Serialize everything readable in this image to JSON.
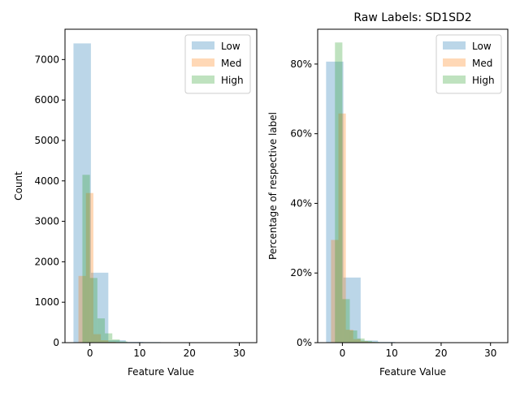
{
  "chart_data": [
    {
      "type": "bar",
      "title": "",
      "xlabel": "Feature Value",
      "ylabel": "Count",
      "xlim": [
        -5,
        33.5
      ],
      "ylim": [
        0,
        7750
      ],
      "xticks": [
        0,
        10,
        20,
        30
      ],
      "xtick_labels": [
        "0",
        "10",
        "20",
        "30"
      ],
      "yticks": [
        0,
        1000,
        2000,
        3000,
        4000,
        5000,
        6000,
        7000
      ],
      "ytick_labels": [
        "0",
        "1000",
        "2000",
        "3000",
        "4000",
        "5000",
        "6000",
        "7000"
      ],
      "legend": "top-right",
      "series": [
        {
          "name": "Low",
          "color": "#1f77b4",
          "bin_edges": [
            -3.3,
            0.2,
            3.7,
            7.2,
            10.7,
            14.2
          ],
          "values": [
            7400,
            1730,
            60,
            20,
            15
          ]
        },
        {
          "name": "Med",
          "color": "#ff7f0e",
          "bin_edges": [
            -2.3,
            -0.8,
            0.7,
            2.2,
            3.7,
            5.2,
            6.7,
            8.2,
            9.7,
            11.2,
            12.7
          ],
          "values": [
            1650,
            3700,
            210,
            60,
            20,
            10,
            5,
            3,
            2,
            1
          ]
        },
        {
          "name": "High",
          "color": "#2ca02c",
          "bin_edges": [
            -1.5,
            0.0,
            1.5,
            3.0,
            4.5,
            6.0,
            7.5,
            9.0,
            10.5,
            12.0,
            13.5
          ],
          "values": [
            4150,
            1600,
            600,
            230,
            80,
            30,
            10,
            5,
            2,
            1
          ]
        }
      ]
    },
    {
      "type": "bar",
      "title": "Raw Labels: SD1SD2",
      "xlabel": "Feature Value",
      "ylabel": "Percentage of respective label",
      "xlim": [
        -5,
        33.5
      ],
      "ylim": [
        0,
        0.9
      ],
      "xticks": [
        0,
        10,
        20,
        30
      ],
      "xtick_labels": [
        "0",
        "10",
        "20",
        "30"
      ],
      "yticks": [
        0,
        0.2,
        0.4,
        0.6,
        0.8
      ],
      "ytick_labels": [
        "0%",
        "20%",
        "40%",
        "60%",
        "80%"
      ],
      "legend": "top-right",
      "series": [
        {
          "name": "Low",
          "color": "#1f77b4",
          "bin_edges": [
            -3.3,
            0.2,
            3.7,
            7.2,
            10.7,
            14.2
          ],
          "values": [
            0.807,
            0.187,
            0.006,
            0.002,
            0.001
          ]
        },
        {
          "name": "Med",
          "color": "#ff7f0e",
          "bin_edges": [
            -2.3,
            -0.8,
            0.7,
            2.2,
            3.7,
            5.2,
            6.7,
            8.2,
            9.7,
            11.2,
            12.7
          ],
          "values": [
            0.295,
            0.658,
            0.037,
            0.01,
            0.004,
            0.002,
            0.001,
            0.0005,
            0.0003,
            0.0002
          ]
        },
        {
          "name": "High",
          "color": "#2ca02c",
          "bin_edges": [
            -1.5,
            0.0,
            1.5,
            3.0,
            4.5,
            6.0,
            7.5,
            9.0,
            10.5,
            12.0,
            13.5
          ],
          "values": [
            0.862,
            0.125,
            0.035,
            0.012,
            0.005,
            0.002,
            0.001,
            0.0005,
            0.0003,
            0.0002
          ]
        }
      ]
    }
  ]
}
